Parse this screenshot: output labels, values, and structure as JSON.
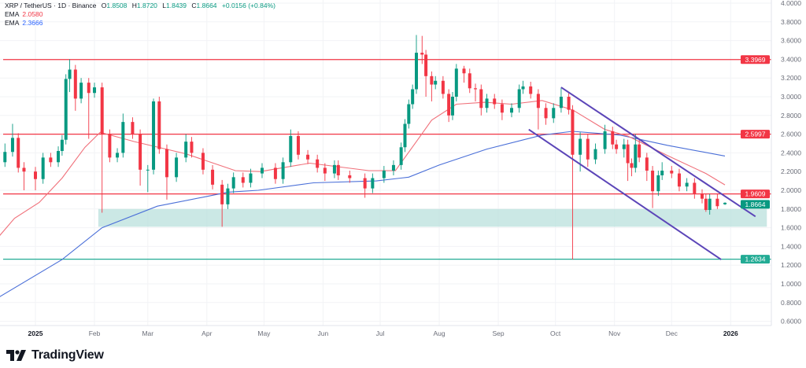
{
  "legend": {
    "symbol": "XRP / TetherUS · 1D · Binance",
    "open_label": "O",
    "open": "1.8508",
    "high_label": "H",
    "high": "1.8720",
    "low_label": "L",
    "low": "1.8439",
    "close_label": "C",
    "close": "1.8664",
    "change": "+0.0156 (+0.84%)",
    "ema1_label": "EMA",
    "ema1_value": "2.0580",
    "ema2_label": "EMA",
    "ema2_value": "2.3666"
  },
  "brand": {
    "name": "TradingView",
    "icon": "tradingview-logo-icon"
  },
  "colors": {
    "up": "#089981",
    "down": "#f23645",
    "ema_red": "#f0707a",
    "ema_blue": "#4a6fd8",
    "resistance": "#f23645",
    "support": "#22ab94",
    "channel": "#5b45b8",
    "zone": "#b9e0dc"
  },
  "chart_data": {
    "type": "candlestick",
    "title": "",
    "ylim": [
      0.6,
      4.0
    ],
    "y_ticks": [
      "4.0000",
      "3.8000",
      "3.6000",
      "3.4000",
      "3.2000",
      "3.0000",
      "2.8000",
      "2.6000",
      "2.4000",
      "2.2000",
      "2.0000",
      "1.8000",
      "1.6000",
      "1.4000",
      "1.2000",
      "1.0000",
      "0.8000",
      "0.6000"
    ],
    "x_ticks": [
      {
        "label": "2025",
        "date": "2025-01-01",
        "bold": true
      },
      {
        "label": "Feb",
        "date": "2025-02-01"
      },
      {
        "label": "Mar",
        "date": "2025-03-01"
      },
      {
        "label": "Apr",
        "date": "2025-04-01"
      },
      {
        "label": "May",
        "date": "2025-05-01"
      },
      {
        "label": "Jun",
        "date": "2025-06-01"
      },
      {
        "label": "Jul",
        "date": "2025-07-01"
      },
      {
        "label": "Aug",
        "date": "2025-08-01"
      },
      {
        "label": "Sep",
        "date": "2025-09-01"
      },
      {
        "label": "Oct",
        "date": "2025-10-01"
      },
      {
        "label": "Nov",
        "date": "2025-11-01"
      },
      {
        "label": "Dec",
        "date": "2025-12-01"
      },
      {
        "label": "2026",
        "date": "2026-01-01",
        "bold": true
      }
    ],
    "grid": true,
    "candles": [
      [
        "2024-12-16",
        2.3,
        2.5,
        2.25,
        2.41
      ],
      [
        "2024-12-20",
        2.41,
        2.71,
        2.36,
        2.56
      ],
      [
        "2024-12-23",
        2.56,
        2.61,
        2.19,
        2.24
      ],
      [
        "2024-12-26",
        2.24,
        2.3,
        2.0,
        2.2
      ],
      [
        "2025-01-01",
        2.2,
        2.25,
        2.0,
        2.12
      ],
      [
        "2025-01-05",
        2.12,
        2.4,
        2.07,
        2.35
      ],
      [
        "2025-01-09",
        2.35,
        2.4,
        2.25,
        2.3
      ],
      [
        "2025-01-13",
        2.3,
        2.47,
        2.25,
        2.42
      ],
      [
        "2025-01-15",
        2.42,
        2.59,
        2.37,
        2.54
      ],
      [
        "2025-01-17",
        2.54,
        3.24,
        2.49,
        3.19
      ],
      [
        "2025-01-19",
        3.19,
        3.4,
        3.05,
        3.29
      ],
      [
        "2025-01-22",
        3.29,
        3.34,
        2.85,
        2.98
      ],
      [
        "2025-01-25",
        2.98,
        3.2,
        2.93,
        3.15
      ],
      [
        "2025-01-29",
        3.15,
        3.2,
        2.55,
        3.04
      ],
      [
        "2025-02-01",
        3.04,
        3.15,
        2.99,
        3.1
      ],
      [
        "2025-02-05",
        3.1,
        3.15,
        1.76,
        2.6
      ],
      [
        "2025-02-09",
        2.6,
        2.65,
        2.3,
        2.35
      ],
      [
        "2025-02-13",
        2.35,
        2.45,
        2.3,
        2.4
      ],
      [
        "2025-02-16",
        2.4,
        2.82,
        2.35,
        2.73
      ],
      [
        "2025-02-21",
        2.73,
        2.78,
        2.55,
        2.6
      ],
      [
        "2025-02-25",
        2.6,
        2.65,
        2.05,
        2.22
      ],
      [
        "2025-03-01",
        2.22,
        2.27,
        1.98,
        2.22
      ],
      [
        "2025-03-04",
        2.22,
        2.98,
        2.17,
        2.95
      ],
      [
        "2025-03-07",
        2.95,
        3.0,
        2.39,
        2.44
      ],
      [
        "2025-03-11",
        2.44,
        2.49,
        1.9,
        2.14
      ],
      [
        "2025-03-16",
        2.14,
        2.4,
        2.09,
        2.35
      ],
      [
        "2025-03-21",
        2.35,
        2.6,
        2.3,
        2.52
      ],
      [
        "2025-03-24",
        2.52,
        2.57,
        2.35,
        2.4
      ],
      [
        "2025-03-30",
        2.4,
        2.45,
        2.17,
        2.22
      ],
      [
        "2025-04-04",
        2.22,
        2.27,
        2.01,
        2.06
      ],
      [
        "2025-04-09",
        2.06,
        2.11,
        1.61,
        1.85
      ],
      [
        "2025-04-12",
        1.85,
        2.07,
        1.8,
        2.02
      ],
      [
        "2025-04-15",
        2.02,
        2.19,
        1.97,
        2.14
      ],
      [
        "2025-04-20",
        2.14,
        2.19,
        2.03,
        2.08
      ],
      [
        "2025-04-24",
        2.08,
        2.23,
        2.03,
        2.18
      ],
      [
        "2025-04-30",
        2.18,
        2.29,
        2.13,
        2.24
      ],
      [
        "2025-05-07",
        2.24,
        2.29,
        2.07,
        2.12
      ],
      [
        "2025-05-11",
        2.12,
        2.35,
        2.07,
        2.3
      ],
      [
        "2025-05-15",
        2.3,
        2.65,
        2.25,
        2.58
      ],
      [
        "2025-05-19",
        2.58,
        2.63,
        2.33,
        2.38
      ],
      [
        "2025-05-24",
        2.38,
        2.43,
        2.28,
        2.33
      ],
      [
        "2025-05-29",
        2.33,
        2.38,
        2.19,
        2.24
      ],
      [
        "2025-06-02",
        2.24,
        2.29,
        2.1,
        2.18
      ],
      [
        "2025-06-07",
        2.18,
        2.32,
        2.13,
        2.27
      ],
      [
        "2025-06-09",
        2.27,
        2.32,
        2.11,
        2.16
      ],
      [
        "2025-06-15",
        2.16,
        2.21,
        2.08,
        2.13
      ],
      [
        "2025-06-23",
        2.13,
        2.18,
        1.92,
        2.02
      ],
      [
        "2025-06-27",
        2.02,
        2.18,
        1.97,
        2.13
      ],
      [
        "2025-07-03",
        2.13,
        2.26,
        2.08,
        2.21
      ],
      [
        "2025-07-08",
        2.21,
        2.32,
        2.16,
        2.27
      ],
      [
        "2025-07-12",
        2.27,
        2.51,
        2.22,
        2.46
      ],
      [
        "2025-07-14",
        2.46,
        2.76,
        2.41,
        2.71
      ],
      [
        "2025-07-16",
        2.71,
        2.97,
        2.66,
        2.92
      ],
      [
        "2025-07-18",
        2.92,
        3.13,
        2.87,
        3.08
      ],
      [
        "2025-07-20",
        3.08,
        3.66,
        3.03,
        3.47
      ],
      [
        "2025-07-23",
        3.47,
        3.65,
        3.35,
        3.45
      ],
      [
        "2025-07-25",
        3.45,
        3.5,
        3.0,
        3.22
      ],
      [
        "2025-07-28",
        3.22,
        3.27,
        2.95,
        3.13
      ],
      [
        "2025-07-30",
        3.13,
        3.22,
        3.08,
        3.17
      ],
      [
        "2025-08-03",
        3.17,
        3.22,
        2.98,
        3.03
      ],
      [
        "2025-08-06",
        3.03,
        3.08,
        2.73,
        2.8
      ],
      [
        "2025-08-08",
        2.8,
        3.05,
        2.75,
        3.0
      ],
      [
        "2025-08-10",
        3.0,
        3.35,
        2.95,
        3.3
      ],
      [
        "2025-08-14",
        3.3,
        3.33,
        3.15,
        3.25
      ],
      [
        "2025-08-17",
        3.25,
        3.3,
        3.04,
        3.09
      ],
      [
        "2025-08-20",
        3.09,
        3.14,
        2.95,
        3.08
      ],
      [
        "2025-08-23",
        3.08,
        3.13,
        2.8,
        2.88
      ],
      [
        "2025-08-26",
        2.88,
        3.03,
        2.83,
        2.98
      ],
      [
        "2025-08-30",
        2.98,
        3.03,
        2.87,
        2.92
      ],
      [
        "2025-09-03",
        2.92,
        2.97,
        2.75,
        2.83
      ],
      [
        "2025-09-08",
        2.83,
        2.93,
        2.78,
        2.88
      ],
      [
        "2025-09-12",
        2.88,
        3.13,
        2.83,
        3.08
      ],
      [
        "2025-09-14",
        3.08,
        3.17,
        3.03,
        3.11
      ],
      [
        "2025-09-18",
        3.11,
        3.16,
        2.98,
        3.03
      ],
      [
        "2025-09-22",
        3.03,
        3.08,
        2.65,
        2.88
      ],
      [
        "2025-09-26",
        2.88,
        2.93,
        2.7,
        2.77
      ],
      [
        "2025-09-30",
        2.77,
        2.93,
        2.72,
        2.88
      ],
      [
        "2025-10-04",
        2.88,
        3.1,
        2.83,
        3.0
      ],
      [
        "2025-10-08",
        3.0,
        3.05,
        2.81,
        2.86
      ],
      [
        "2025-10-10",
        2.86,
        2.91,
        1.26,
        2.38
      ],
      [
        "2025-10-14",
        2.38,
        2.62,
        2.2,
        2.55
      ],
      [
        "2025-10-18",
        2.55,
        2.6,
        2.25,
        2.33
      ],
      [
        "2025-10-22",
        2.33,
        2.5,
        2.28,
        2.44
      ],
      [
        "2025-10-27",
        2.44,
        2.7,
        2.39,
        2.63
      ],
      [
        "2025-10-31",
        2.63,
        2.68,
        2.44,
        2.49
      ],
      [
        "2025-11-02",
        2.49,
        2.54,
        2.39,
        2.44
      ],
      [
        "2025-11-06",
        2.44,
        2.55,
        2.35,
        2.49
      ],
      [
        "2025-11-08",
        2.49,
        2.54,
        2.1,
        2.29
      ],
      [
        "2025-11-10",
        2.29,
        2.34,
        2.15,
        2.24
      ],
      [
        "2025-11-12",
        2.24,
        2.6,
        2.19,
        2.49
      ],
      [
        "2025-11-14",
        2.49,
        2.54,
        2.3,
        2.35
      ],
      [
        "2025-11-18",
        2.35,
        2.4,
        2.1,
        2.21
      ],
      [
        "2025-11-21",
        2.21,
        2.26,
        1.81,
        1.99
      ],
      [
        "2025-11-24",
        1.99,
        2.21,
        1.94,
        2.16
      ],
      [
        "2025-11-26",
        2.16,
        2.3,
        2.11,
        2.21
      ],
      [
        "2025-12-01",
        2.21,
        2.26,
        2.13,
        2.18
      ],
      [
        "2025-12-05",
        2.18,
        2.23,
        1.99,
        2.04
      ],
      [
        "2025-12-09",
        2.04,
        2.13,
        1.99,
        2.08
      ],
      [
        "2025-12-13",
        2.08,
        2.13,
        1.91,
        1.96
      ],
      [
        "2025-12-17",
        1.96,
        2.01,
        1.86,
        1.91
      ],
      [
        "2025-12-19",
        1.91,
        1.96,
        1.77,
        1.79
      ],
      [
        "2025-12-21",
        1.79,
        1.96,
        1.74,
        1.91
      ],
      [
        "2025-12-25",
        1.91,
        1.96,
        1.8,
        1.83
      ],
      [
        "2025-12-29",
        1.8508,
        1.872,
        1.8439,
        1.8664
      ]
    ],
    "ema_short": [
      [
        "2024-12-13",
        1.51
      ],
      [
        "2024-12-21",
        1.7
      ],
      [
        "2025-01-03",
        1.87
      ],
      [
        "2025-01-15",
        2.13
      ],
      [
        "2025-01-27",
        2.46
      ],
      [
        "2025-02-04",
        2.62
      ],
      [
        "2025-02-22",
        2.52
      ],
      [
        "2025-03-21",
        2.39
      ],
      [
        "2025-04-16",
        2.21
      ],
      [
        "2025-04-29",
        2.2
      ],
      [
        "2025-05-25",
        2.29
      ],
      [
        "2025-06-25",
        2.21
      ],
      [
        "2025-07-09",
        2.21
      ],
      [
        "2025-07-20",
        2.52
      ],
      [
        "2025-07-28",
        2.75
      ],
      [
        "2025-08-10",
        2.92
      ],
      [
        "2025-08-25",
        2.94
      ],
      [
        "2025-09-08",
        2.92
      ],
      [
        "2025-09-24",
        2.96
      ],
      [
        "2025-10-10",
        2.86
      ],
      [
        "2025-10-27",
        2.65
      ],
      [
        "2025-11-08",
        2.58
      ],
      [
        "2025-11-29",
        2.37
      ],
      [
        "2025-12-19",
        2.18
      ],
      [
        "2025-12-29",
        2.058
      ]
    ],
    "ema_long": [
      [
        "2024-12-13",
        0.86
      ],
      [
        "2025-01-15",
        1.26
      ],
      [
        "2025-02-05",
        1.6
      ],
      [
        "2025-03-06",
        1.83
      ],
      [
        "2025-03-31",
        1.93
      ],
      [
        "2025-04-12",
        1.98
      ],
      [
        "2025-04-28",
        2.0
      ],
      [
        "2025-05-27",
        2.08
      ],
      [
        "2025-06-29",
        2.1
      ],
      [
        "2025-07-16",
        2.14
      ],
      [
        "2025-08-01",
        2.27
      ],
      [
        "2025-08-26",
        2.44
      ],
      [
        "2025-09-24",
        2.59
      ],
      [
        "2025-10-10",
        2.63
      ],
      [
        "2025-11-04",
        2.59
      ],
      [
        "2025-11-29",
        2.48
      ],
      [
        "2025-12-29",
        2.3666
      ]
    ],
    "horizontal_levels": [
      {
        "price": 3.3969,
        "label": "3.3969",
        "kind": "resistance"
      },
      {
        "price": 2.5997,
        "label": "2.5997",
        "kind": "resistance"
      },
      {
        "price": 1.9609,
        "label": "1.9609",
        "kind": "resistance"
      },
      {
        "price": 1.2634,
        "label": "1.2634",
        "kind": "support"
      }
    ],
    "last_price": {
      "price": 1.8664,
      "label": "1.8664"
    },
    "demand_zone": {
      "from": "2025-02-03",
      "to": "2026-01-20",
      "top": 1.8,
      "bottom": 1.61
    },
    "channel": {
      "upper": [
        [
          "2025-10-04",
          3.1
        ],
        [
          "2026-01-14",
          1.72
        ]
      ],
      "lower": [
        [
          "2025-09-17",
          2.65
        ],
        [
          "2025-12-27",
          1.26
        ]
      ]
    }
  }
}
